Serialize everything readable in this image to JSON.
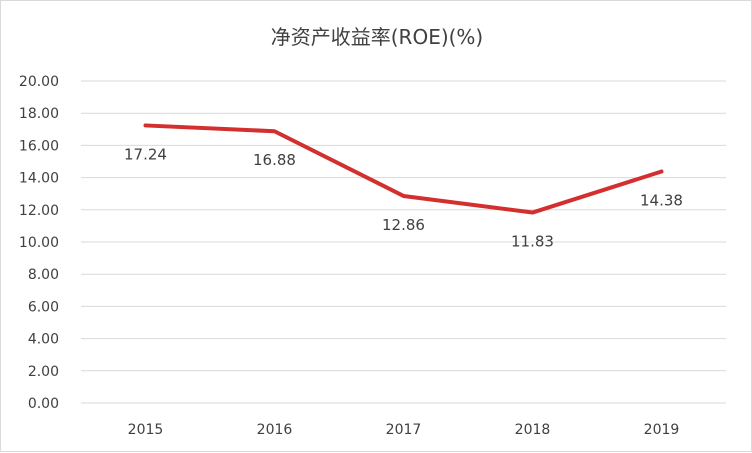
{
  "chart_data": {
    "type": "line",
    "title": "净资产收益率(ROE)(%)",
    "categories": [
      "2015",
      "2016",
      "2017",
      "2018",
      "2019"
    ],
    "series": [
      {
        "values": [
          17.24,
          16.88,
          12.86,
          11.83,
          14.38
        ]
      }
    ],
    "data_labels": [
      "17.24",
      "16.88",
      "12.86",
      "11.83",
      "14.38"
    ],
    "y_ticks": [
      "0.00",
      "2.00",
      "4.00",
      "6.00",
      "8.00",
      "10.00",
      "12.00",
      "14.00",
      "16.00",
      "18.00",
      "20.00"
    ],
    "ylim": [
      0,
      20
    ],
    "grid": true,
    "legend": "none",
    "line_color": "#d32f2f",
    "grid_color": "#d9d9d9"
  }
}
